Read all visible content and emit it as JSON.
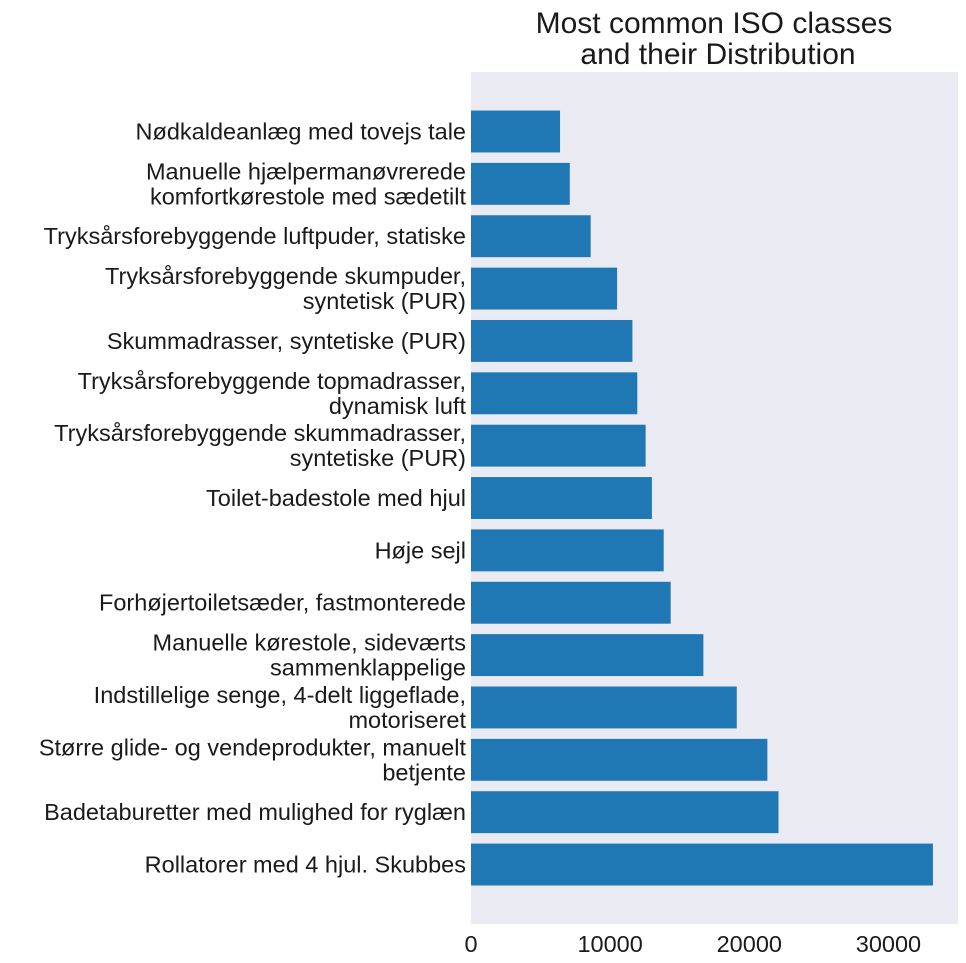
{
  "chart_data": {
    "type": "bar",
    "orientation": "horizontal",
    "title": [
      "Most common ISO classes",
      "and their Distribution"
    ],
    "xlabel": "",
    "ylabel": "",
    "xlim": [
      0,
      35000
    ],
    "xticks": [
      0,
      10000,
      20000,
      30000
    ],
    "xtick_labels": [
      "0",
      "10000",
      "20000",
      "30000"
    ],
    "grid": false,
    "bar_color": "#1f77b4",
    "plot_background": "#eaeaf2",
    "categories": [
      [
        "Nødkaldeanlæg med tovejs tale"
      ],
      [
        "Manuelle hjælpermanøvrerede",
        "komfortkørestole med sædetilt"
      ],
      [
        "Tryksårsforebyggende luftpuder, statiske"
      ],
      [
        "Tryksårsforebyggende skumpuder,",
        "syntetisk (PUR)"
      ],
      [
        "Skummadrasser, syntetiske (PUR)"
      ],
      [
        "Tryksårsforebyggende topmadrasser,",
        "dynamisk luft"
      ],
      [
        "Tryksårsforebyggende skummadrasser,",
        "syntetiske (PUR)"
      ],
      [
        "Toilet-badestole med hjul"
      ],
      [
        "Høje sejl"
      ],
      [
        "Forhøjertoiletsæder, fastmonterede"
      ],
      [
        "Manuelle kørestole, sideværts",
        "sammenklappelige"
      ],
      [
        "Indstillelige senge, 4-delt liggeflade,",
        "motoriseret"
      ],
      [
        "Større glide- og vendeprodukter, manuelt",
        "betjente"
      ],
      [
        "Badetaburetter med mulighed for ryglæn"
      ],
      [
        "Rollatorer med 4 hjul. Skubbes"
      ]
    ],
    "values": [
      6400,
      7100,
      8600,
      10500,
      11600,
      11950,
      12550,
      13000,
      13850,
      14350,
      16700,
      19100,
      21300,
      22100,
      33200
    ]
  }
}
